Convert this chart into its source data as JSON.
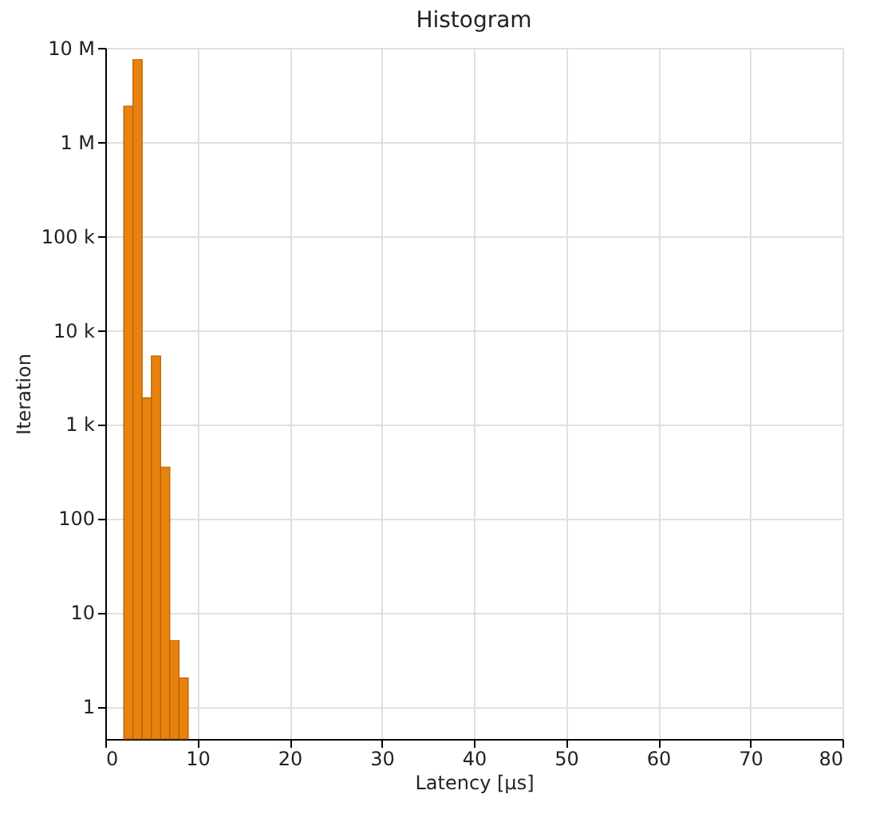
{
  "chart_data": {
    "type": "histogram",
    "title": "Histogram",
    "xlabel": "Latency [µs]",
    "ylabel": "Iteration",
    "bins": [
      2,
      3,
      4,
      5,
      6,
      7,
      8,
      9
    ],
    "values": [
      2400000,
      7500000,
      1900,
      5300,
      350,
      5,
      2
    ],
    "color": "#e8820e",
    "xlim": [
      0,
      80
    ],
    "xticks": [
      0,
      10,
      20,
      30,
      40,
      50,
      60,
      70,
      80
    ],
    "ylim": [
      0.45,
      10000000
    ],
    "log": "y",
    "yticks": [
      {
        "value": 1,
        "label": "1"
      },
      {
        "value": 10,
        "label": "10"
      },
      {
        "value": 100,
        "label": "100"
      },
      {
        "value": 1000,
        "label": "1 k"
      },
      {
        "value": 10000,
        "label": "10 k"
      },
      {
        "value": 100000,
        "label": "100 k"
      },
      {
        "value": 1000000,
        "label": "1 M"
      },
      {
        "value": 10000000,
        "label": "10 M"
      }
    ],
    "grid": true
  }
}
